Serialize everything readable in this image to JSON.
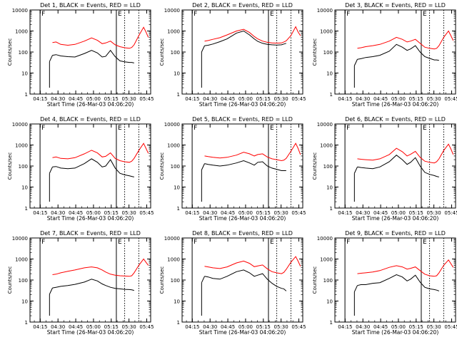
{
  "figure": {
    "panels_common": {
      "ylabel": "Counts/sec",
      "xlabel": "Start Time (26-Mar-03 04:06:20)",
      "xtick_labels": [
        "04:15",
        "04:30",
        "04:45",
        "05:00",
        "05:15",
        "05:30",
        "05:45"
      ],
      "ytick_labels": [
        "1",
        "10",
        "100",
        "1000",
        "10000"
      ]
    },
    "colors": {
      "events": "#000000",
      "lld": "#ff0000"
    }
  },
  "chart_data": [
    {
      "type": "line",
      "title": "Det 1, BLACK = Events, RED = LLD",
      "xlabel": "Start Time (26-Mar-03 04:06:20)",
      "ylabel": "Counts/sec",
      "yscale": "log",
      "ylim": [
        1,
        10000
      ],
      "x_unit": "minutes after 04:06:20",
      "xlim": [
        0,
        102
      ],
      "x": [
        19,
        22,
        26,
        32,
        38,
        46,
        52,
        57,
        61,
        64,
        68,
        72,
        76,
        80,
        84,
        86,
        88,
        92,
        96,
        98,
        100
      ],
      "series": [
        {
          "name": "Events",
          "color": "#000000",
          "values": [
            70,
            75,
            65,
            60,
            58,
            85,
            120,
            90,
            58,
            62,
            120,
            60,
            38,
            34,
            32,
            32,
            30,
            null,
            null,
            null,
            null
          ]
        },
        {
          "name": "LLD",
          "color": "#ff0000",
          "values": [
            280,
            300,
            230,
            210,
            230,
            330,
            470,
            360,
            250,
            270,
            330,
            220,
            180,
            160,
            150,
            165,
            220,
            600,
            1500,
            900,
            500
          ]
        }
      ],
      "markers": [
        {
          "label": "F",
          "x": 8.5
        },
        {
          "label": "E",
          "x": 73
        }
      ],
      "legend": "none",
      "grid": false
    },
    {
      "type": "line",
      "title": "Det 2, BLACK = Events, RED = LLD",
      "xlabel": "Start Time (26-Mar-03 04:06:20)",
      "ylabel": "Counts/sec",
      "yscale": "log",
      "ylim": [
        1,
        10000
      ],
      "x_unit": "minutes after 04:06:20",
      "xlim": [
        0,
        102
      ],
      "x": [
        19,
        22,
        26,
        32,
        38,
        46,
        52,
        57,
        61,
        64,
        68,
        72,
        76,
        80,
        84,
        86,
        88,
        92,
        96,
        98,
        100
      ],
      "series": [
        {
          "name": "Events",
          "color": "#000000",
          "values": [
            200,
            210,
            240,
            310,
            420,
            800,
            1000,
            650,
            420,
            320,
            260,
            230,
            220,
            215,
            220,
            240,
            260,
            null,
            null,
            null,
            null
          ]
        },
        {
          "name": "LLD",
          "color": "#ff0000",
          "values": [
            330,
            350,
            400,
            480,
            650,
            1000,
            1200,
            850,
            550,
            420,
            330,
            290,
            270,
            265,
            270,
            300,
            340,
            600,
            1600,
            900,
            600
          ]
        }
      ],
      "markers": [
        {
          "label": "F",
          "x": 8.5
        },
        {
          "label": "E",
          "x": 73
        }
      ],
      "legend": "none",
      "grid": false
    },
    {
      "type": "line",
      "title": "Det 3, BLACK = Events, RED = LLD",
      "xlabel": "Start Time (26-Mar-03 04:06:20)",
      "ylabel": "Counts/sec",
      "yscale": "log",
      "ylim": [
        1,
        10000
      ],
      "x_unit": "minutes after 04:06:20",
      "xlim": [
        0,
        102
      ],
      "x": [
        19,
        22,
        26,
        32,
        38,
        46,
        52,
        57,
        61,
        64,
        68,
        72,
        76,
        80,
        84,
        86,
        88,
        92,
        96,
        98,
        100
      ],
      "series": [
        {
          "name": "Events",
          "color": "#000000",
          "values": [
            45,
            48,
            55,
            60,
            70,
            110,
            230,
            170,
            120,
            140,
            200,
            100,
            60,
            50,
            42,
            42,
            40,
            null,
            null,
            null,
            null
          ]
        },
        {
          "name": "LLD",
          "color": "#ff0000",
          "values": [
            150,
            160,
            180,
            200,
            230,
            330,
            500,
            400,
            300,
            330,
            400,
            260,
            170,
            150,
            140,
            150,
            200,
            500,
            1000,
            600,
            350
          ]
        }
      ],
      "markers": [
        {
          "label": "F",
          "x": 8.5
        },
        {
          "label": "E",
          "x": 73
        }
      ],
      "legend": "none",
      "grid": false
    },
    {
      "type": "line",
      "title": "Det 4, BLACK = Events, RED = LLD",
      "xlabel": "Start Time (26-Mar-03 04:06:20)",
      "ylabel": "Counts/sec",
      "yscale": "log",
      "ylim": [
        1,
        10000
      ],
      "x_unit": "minutes after 04:06:20",
      "xlim": [
        0,
        102
      ],
      "x": [
        19,
        22,
        26,
        32,
        38,
        46,
        52,
        57,
        61,
        64,
        68,
        72,
        76,
        80,
        84,
        86,
        88,
        92,
        96,
        98,
        100
      ],
      "series": [
        {
          "name": "Events",
          "color": "#000000",
          "values": [
            90,
            95,
            80,
            75,
            80,
            130,
            220,
            150,
            90,
            100,
            200,
            80,
            45,
            38,
            34,
            32,
            30,
            null,
            null,
            null,
            null
          ]
        },
        {
          "name": "LLD",
          "color": "#ff0000",
          "values": [
            250,
            270,
            230,
            220,
            250,
            380,
            560,
            420,
            270,
            290,
            420,
            230,
            180,
            160,
            150,
            170,
            230,
            550,
            1200,
            700,
            400
          ]
        }
      ],
      "markers": [
        {
          "label": "F",
          "x": 8.5
        },
        {
          "label": "E",
          "x": 73
        }
      ],
      "legend": "none",
      "grid": false
    },
    {
      "type": "line",
      "title": "Det 5, BLACK = Events, RED = LLD",
      "xlabel": "Start Time (26-Mar-03 04:06:20)",
      "ylabel": "Counts/sec",
      "yscale": "log",
      "ylim": [
        1,
        10000
      ],
      "x_unit": "minutes after 04:06:20",
      "xlim": [
        0,
        102
      ],
      "x": [
        19,
        22,
        26,
        32,
        38,
        46,
        52,
        57,
        61,
        64,
        68,
        72,
        76,
        80,
        84,
        86,
        88,
        92,
        96,
        98,
        100
      ],
      "series": [
        {
          "name": "Events",
          "color": "#000000",
          "values": [
            130,
            120,
            110,
            100,
            110,
            140,
            180,
            140,
            110,
            150,
            160,
            100,
            80,
            70,
            60,
            60,
            60,
            null,
            null,
            null,
            null
          ]
        },
        {
          "name": "LLD",
          "color": "#ff0000",
          "values": [
            300,
            280,
            260,
            240,
            260,
            330,
            450,
            380,
            300,
            350,
            380,
            270,
            220,
            200,
            180,
            190,
            230,
            500,
            1200,
            700,
            350
          ]
        }
      ],
      "markers": [
        {
          "label": "F",
          "x": 8.5
        },
        {
          "label": "E",
          "x": 73
        }
      ],
      "legend": "none",
      "grid": false
    },
    {
      "type": "line",
      "title": "Det 6, BLACK = Events, RED = LLD",
      "xlabel": "Start Time (26-Mar-03 04:06:20)",
      "ylabel": "Counts/sec",
      "yscale": "log",
      "ylim": [
        1,
        10000
      ],
      "x_unit": "minutes after 04:06:20",
      "xlim": [
        0,
        102
      ],
      "x": [
        19,
        22,
        26,
        32,
        38,
        46,
        52,
        57,
        61,
        64,
        68,
        72,
        76,
        80,
        84,
        86,
        88,
        92,
        96,
        98,
        100
      ],
      "series": [
        {
          "name": "Events",
          "color": "#000000",
          "values": [
            90,
            85,
            80,
            75,
            90,
            160,
            330,
            200,
            120,
            150,
            250,
            100,
            50,
            40,
            35,
            32,
            30,
            null,
            null,
            null,
            null
          ]
        },
        {
          "name": "LLD",
          "color": "#ff0000",
          "values": [
            220,
            210,
            200,
            190,
            220,
            350,
            700,
            480,
            300,
            360,
            500,
            260,
            170,
            150,
            140,
            160,
            220,
            550,
            1100,
            650,
            350
          ]
        }
      ],
      "markers": [
        {
          "label": "F",
          "x": 8.5
        },
        {
          "label": "E",
          "x": 73
        }
      ],
      "legend": "none",
      "grid": false
    },
    {
      "type": "line",
      "title": "Det 7, BLACK = Events, RED = LLD",
      "xlabel": "Start Time (26-Mar-03 04:06:20)",
      "ylabel": "Counts/sec",
      "yscale": "log",
      "ylim": [
        1,
        10000
      ],
      "x_unit": "minutes after 04:06:20",
      "xlim": [
        0,
        102
      ],
      "x": [
        19,
        22,
        26,
        32,
        38,
        46,
        52,
        57,
        61,
        64,
        68,
        72,
        76,
        80,
        84,
        86,
        88,
        92,
        96,
        98,
        100
      ],
      "series": [
        {
          "name": "Events",
          "color": "#000000",
          "values": [
            42,
            45,
            50,
            55,
            62,
            80,
            110,
            90,
            65,
            55,
            45,
            40,
            38,
            36,
            35,
            34,
            32,
            null,
            null,
            null,
            null
          ]
        },
        {
          "name": "LLD",
          "color": "#ff0000",
          "values": [
            180,
            190,
            220,
            260,
            300,
            380,
            420,
            380,
            300,
            240,
            190,
            170,
            160,
            155,
            150,
            160,
            220,
            500,
            1000,
            700,
            500
          ]
        }
      ],
      "markers": [
        {
          "label": "F",
          "x": 8.5
        },
        {
          "label": "E",
          "x": 73
        }
      ],
      "legend": "none",
      "grid": false
    },
    {
      "type": "line",
      "title": "Det 8, BLACK = Events, RED = LLD",
      "xlabel": "Start Time (26-Mar-03 04:06:20)",
      "ylabel": "Counts/sec",
      "yscale": "log",
      "ylim": [
        1,
        10000
      ],
      "x_unit": "minutes after 04:06:20",
      "xlim": [
        0,
        102
      ],
      "x": [
        19,
        22,
        26,
        32,
        38,
        46,
        52,
        57,
        61,
        64,
        68,
        72,
        76,
        80,
        84,
        86,
        88,
        92,
        96,
        98,
        100
      ],
      "series": [
        {
          "name": "Events",
          "color": "#000000",
          "values": [
            150,
            140,
            120,
            110,
            150,
            250,
            300,
            220,
            150,
            170,
            200,
            110,
            70,
            50,
            40,
            38,
            30,
            null,
            null,
            null,
            null
          ]
        },
        {
          "name": "LLD",
          "color": "#ff0000",
          "values": [
            450,
            420,
            380,
            350,
            420,
            650,
            800,
            620,
            430,
            470,
            520,
            340,
            250,
            220,
            200,
            230,
            320,
            700,
            1300,
            800,
            450
          ]
        }
      ],
      "markers": [
        {
          "label": "F",
          "x": 8.5
        },
        {
          "label": "E",
          "x": 73
        }
      ],
      "legend": "none",
      "grid": false
    },
    {
      "type": "line",
      "title": "Det 9, BLACK = Events, RED = LLD",
      "xlabel": "Start Time (26-Mar-03 04:06:20)",
      "ylabel": "Counts/sec",
      "yscale": "log",
      "ylim": [
        1,
        10000
      ],
      "x_unit": "minutes after 04:06:20",
      "xlim": [
        0,
        102
      ],
      "x": [
        19,
        22,
        26,
        32,
        38,
        46,
        52,
        57,
        61,
        64,
        68,
        72,
        76,
        80,
        84,
        86,
        88,
        92,
        96,
        98,
        100
      ],
      "series": [
        {
          "name": "Events",
          "color": "#000000",
          "values": [
            55,
            60,
            60,
            70,
            75,
            120,
            180,
            140,
            90,
            110,
            170,
            80,
            45,
            38,
            35,
            33,
            30,
            null,
            null,
            null,
            null
          ]
        },
        {
          "name": "LLD",
          "color": "#ff0000",
          "values": [
            200,
            210,
            220,
            240,
            280,
            400,
            480,
            420,
            330,
            360,
            420,
            280,
            190,
            160,
            150,
            160,
            220,
            500,
            900,
            600,
            400
          ]
        }
      ],
      "markers": [
        {
          "label": "F",
          "x": 8.5
        },
        {
          "label": "E",
          "x": 73
        }
      ],
      "legend": "none",
      "grid": false
    }
  ]
}
